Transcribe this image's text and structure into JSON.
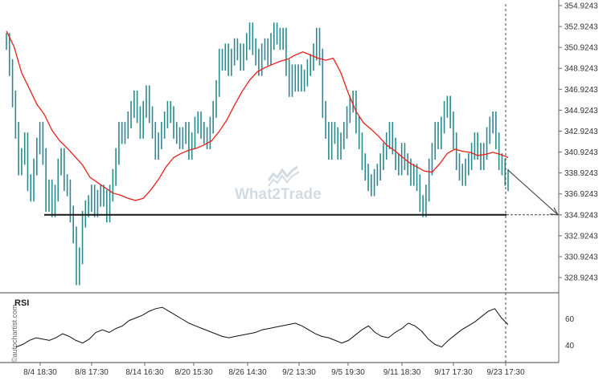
{
  "chart_data": {
    "type": "line",
    "instrument": "",
    "y_ticks": [
      "354.9243",
      "352.9243",
      "350.9243",
      "348.9243",
      "346.9243",
      "344.9243",
      "342.9243",
      "340.9243",
      "338.9243",
      "336.9243",
      "334.9243",
      "332.9243",
      "330.9243",
      "328.9243"
    ],
    "ylim": [
      327.9,
      355.0
    ],
    "x_ticks": [
      "8/4 18:30",
      "8/8 17:30",
      "8/14 16:30",
      "8/20 15:30",
      "8/26 14:30",
      "9/2 13:30",
      "9/5 19:30",
      "9/11 18:30",
      "9/17 17:30",
      "9/23 17:30"
    ],
    "support_level": 334.9243,
    "series": [
      {
        "role": "price",
        "values": [
          351.5,
          349.0,
          346.0,
          343.0,
          339.5,
          340.5,
          342.0,
          338.0,
          337.0,
          339.5,
          341.5,
          343.0,
          340.5,
          336.0,
          337.5,
          335.5,
          337.0,
          339.5,
          340.5,
          338.0,
          337.5,
          335.0,
          333.0,
          329.0,
          331.0,
          334.5,
          335.5,
          336.0,
          337.0,
          335.5,
          336.5,
          337.0,
          336.5,
          335.0,
          337.0,
          338.5,
          340.5,
          343.0,
          342.5,
          343.0,
          344.0,
          345.0,
          346.0,
          344.5,
          343.0,
          345.0,
          346.5,
          344.5,
          343.0,
          341.0,
          342.0,
          343.0,
          344.0,
          345.0,
          344.5,
          343.0,
          342.5,
          342.0,
          342.5,
          343.0,
          341.0,
          342.0,
          343.5,
          344.0,
          343.0,
          342.5,
          342.0,
          343.5,
          345.0,
          347.0,
          350.0,
          349.5,
          350.5,
          349.0,
          350.0,
          351.0,
          350.5,
          349.5,
          350.5,
          351.5,
          352.5,
          351.0,
          350.0,
          349.0,
          350.5,
          351.0,
          350.0,
          351.5,
          352.5,
          352.0,
          351.5,
          352.0,
          349.0,
          347.0,
          348.5,
          347.5,
          348.5,
          347.5,
          348.0,
          349.0,
          349.5,
          350.5,
          352.0,
          350.0,
          345.0,
          343.0,
          341.0,
          343.0,
          342.5,
          341.0,
          342.0,
          343.0,
          344.5,
          345.5,
          346.0,
          343.5,
          342.0,
          340.0,
          339.0,
          338.0,
          337.5,
          338.5,
          339.0,
          340.0,
          341.0,
          342.0,
          343.0,
          341.5,
          340.0,
          339.5,
          341.0,
          340.0,
          339.5,
          338.5,
          339.0,
          338.0,
          336.0,
          335.5,
          337.0,
          339.5,
          341.0,
          343.0,
          342.0,
          343.5,
          345.0,
          345.5,
          344.0,
          342.0,
          340.0,
          339.0,
          338.5,
          339.5,
          340.0,
          341.0,
          342.0,
          341.0,
          340.0,
          341.0,
          342.5,
          343.5,
          344.0,
          342.0,
          340.0,
          339.5,
          338.5,
          338.0
        ]
      },
      {
        "role": "moving-average",
        "values": [
          352.5,
          351.0,
          348.5,
          347.0,
          345.5,
          344.5,
          343.0,
          342.0,
          341.3,
          340.5,
          339.7,
          338.5,
          338.0,
          337.5,
          337.0,
          336.8,
          336.5,
          336.3,
          336.5,
          337.3,
          338.3,
          339.5,
          340.4,
          340.8,
          341.1,
          341.3,
          341.6,
          342.0,
          342.9,
          344.0,
          345.4,
          346.7,
          347.8,
          348.6,
          349.0,
          349.3,
          349.6,
          349.8,
          350.2,
          350.5,
          350.2,
          349.9,
          349.7,
          349.9,
          348.5,
          346.5,
          344.8,
          343.7,
          343.1,
          342.4,
          341.6,
          341.1,
          340.5,
          339.9,
          339.5,
          339.1,
          339.0,
          339.8,
          340.8,
          341.2,
          341.0,
          340.9,
          340.6,
          340.7,
          340.9,
          340.7,
          340.4
        ]
      },
      {
        "role": "rsi",
        "values": [
          39,
          41,
          44,
          46,
          45,
          44,
          46,
          49,
          47,
          44,
          42,
          45,
          50,
          52,
          50,
          53,
          55,
          59,
          61,
          63,
          66,
          68,
          69,
          66,
          63,
          60,
          57,
          55,
          53,
          51,
          49,
          47,
          46,
          47,
          48,
          49,
          50,
          52,
          53,
          54,
          55,
          56,
          57,
          55,
          52,
          49,
          47,
          46,
          44,
          42,
          44,
          48,
          52,
          55,
          50,
          47,
          46,
          50,
          53,
          57,
          55,
          51,
          45,
          41,
          39,
          44,
          48,
          52,
          55,
          58,
          62,
          66,
          68,
          61,
          56
        ]
      }
    ]
  }
}
